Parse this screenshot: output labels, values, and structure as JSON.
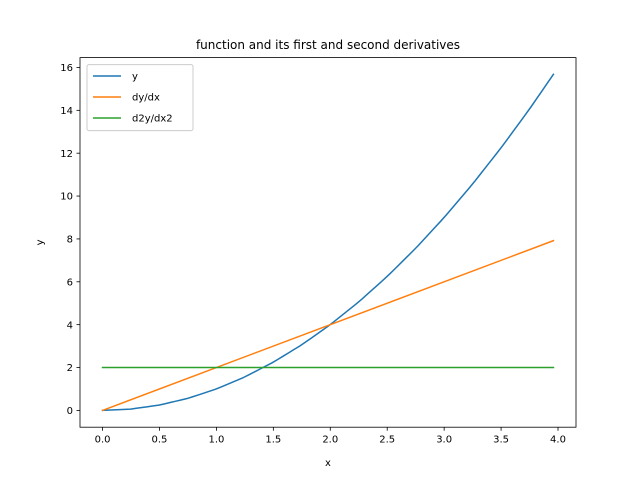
{
  "chart_data": {
    "type": "line",
    "title": "function and its first and second derivatives",
    "xlabel": "x",
    "ylabel": "y",
    "xlim": [
      -0.198,
      4.158
    ],
    "ylim": [
      -0.784,
      16.46
    ],
    "xticks": [
      0.0,
      0.5,
      1.0,
      1.5,
      2.0,
      2.5,
      3.0,
      3.5,
      4.0
    ],
    "xtick_labels": [
      "0.0",
      "0.5",
      "1.0",
      "1.5",
      "2.0",
      "2.5",
      "3.0",
      "3.5",
      "4.0"
    ],
    "yticks": [
      0,
      2,
      4,
      6,
      8,
      10,
      12,
      14,
      16
    ],
    "ytick_labels": [
      "0",
      "2",
      "4",
      "6",
      "8",
      "10",
      "12",
      "14",
      "16"
    ],
    "grid": false,
    "legend_position": "top-left",
    "series": [
      {
        "name": "y",
        "color": "#1f77b4",
        "x": [
          0.0,
          0.25,
          0.5,
          0.75,
          1.0,
          1.25,
          1.5,
          1.75,
          2.0,
          2.25,
          2.5,
          2.75,
          3.0,
          3.25,
          3.5,
          3.75,
          3.96
        ],
        "y": [
          0.0,
          0.0625,
          0.25,
          0.5625,
          1.0,
          1.5625,
          2.25,
          3.0625,
          4.0,
          5.0625,
          6.25,
          7.5625,
          9.0,
          10.5625,
          12.25,
          14.0625,
          15.6816
        ]
      },
      {
        "name": "dy/dx",
        "color": "#ff7f0e",
        "x": [
          0.0,
          3.96
        ],
        "y": [
          0.0,
          7.92
        ]
      },
      {
        "name": "d2y/dx2",
        "color": "#2ca02c",
        "x": [
          0.0,
          3.96
        ],
        "y": [
          2.0,
          2.0
        ]
      }
    ]
  }
}
